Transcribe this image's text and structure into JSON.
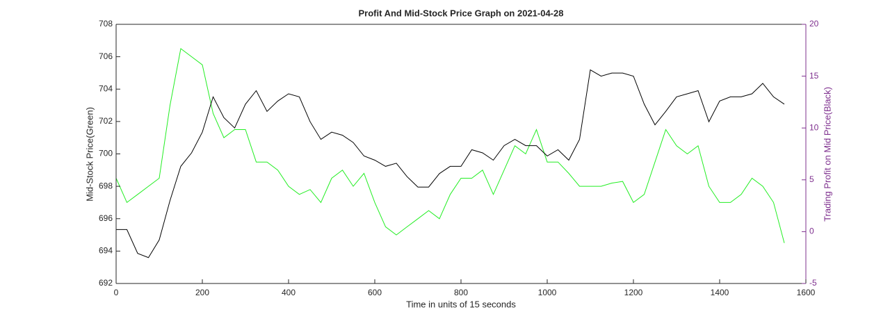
{
  "chart_data": {
    "type": "line",
    "title": "Profit And Mid-Stock Price Graph on 2021-04-28",
    "xlabel": "Time in units of 15 seconds",
    "ylabel": "Mid-Stock Price(Green)",
    "y2label": "Trading Profit on Mid Price(Black)",
    "y2color": "#7e2f8e",
    "x": [
      0,
      25,
      50,
      75,
      100,
      125,
      150,
      175,
      200,
      225,
      250,
      275,
      300,
      325,
      350,
      375,
      400,
      425,
      450,
      475,
      500,
      525,
      550,
      575,
      600,
      625,
      650,
      675,
      700,
      725,
      750,
      775,
      800,
      825,
      850,
      875,
      900,
      925,
      950,
      975,
      1000,
      1025,
      1050,
      1075,
      1100,
      1125,
      1150,
      1175,
      1200,
      1225,
      1250,
      1275,
      1300,
      1325,
      1350,
      1375,
      1400,
      1425,
      1450,
      1475,
      1500,
      1525,
      1550
    ],
    "series": [
      {
        "name": "Mid-Stock Price",
        "color": "#22ee22",
        "axis": "y",
        "values": [
          698.5,
          697,
          697.5,
          698,
          698.5,
          703,
          706.5,
          706,
          705.5,
          702.5,
          701,
          701.5,
          701.5,
          699.5,
          699.5,
          699,
          698,
          697.5,
          697.8,
          697,
          698.5,
          699,
          698,
          698.8,
          697,
          695.5,
          695,
          695.5,
          696,
          696.5,
          696,
          697.5,
          698.5,
          698.5,
          699,
          697.5,
          699,
          700.5,
          700,
          701.5,
          699.5,
          699.5,
          698.8,
          698,
          698,
          698,
          698.2,
          698.3,
          697,
          697.5,
          699.5,
          701.5,
          700.5,
          700,
          700.5,
          698,
          697,
          697,
          697.5,
          698.5,
          698,
          697,
          694.5
        ]
      },
      {
        "name": "Trading Profit",
        "color": "#000000",
        "axis": "y2",
        "values": [
          0.2,
          0.2,
          -2.1,
          -2.5,
          -0.8,
          3,
          6.3,
          7.6,
          9.6,
          13,
          11,
          10,
          12.3,
          13.6,
          11.6,
          12.6,
          13.3,
          13,
          10.6,
          8.9,
          9.6,
          9.3,
          8.6,
          7.3,
          6.9,
          6.3,
          6.6,
          5.3,
          4.3,
          4.3,
          5.6,
          6.3,
          6.3,
          7.9,
          7.6,
          6.9,
          8.3,
          8.9,
          8.3,
          8.3,
          7.3,
          7.9,
          6.9,
          8.9,
          15.6,
          15,
          15.3,
          15.3,
          15,
          12.3,
          10.3,
          11.6,
          13,
          13.3,
          13.6,
          10.6,
          12.6,
          13,
          13,
          13.3,
          14.3,
          13,
          12.3
        ]
      }
    ],
    "xlim": [
      0,
      1600
    ],
    "xticks": [
      0,
      200,
      400,
      600,
      800,
      1000,
      1200,
      1400,
      1600
    ],
    "ylim": [
      692,
      708
    ],
    "yticks": [
      692,
      694,
      696,
      698,
      700,
      702,
      704,
      706,
      708
    ],
    "y2lim": [
      -5,
      20
    ],
    "y2ticks": [
      -5,
      0,
      5,
      10,
      15,
      20
    ],
    "grid": false
  }
}
